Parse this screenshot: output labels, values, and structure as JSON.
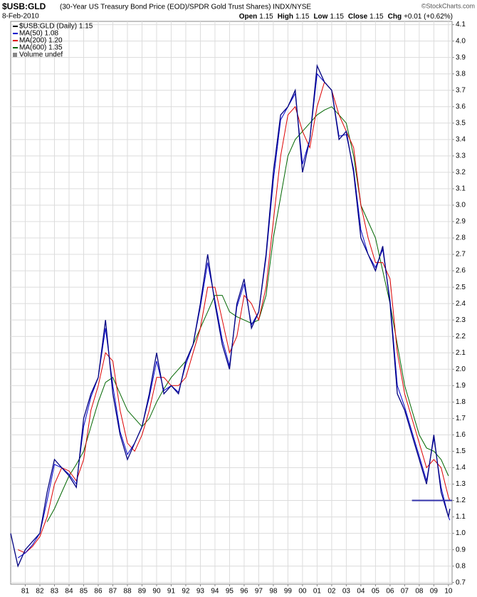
{
  "chart_data": {
    "type": "line",
    "title": "$USB:GLD",
    "subtitle": "(30-Year US Treasury Bond Price (EOD)/SPDR Gold Trust Shares) INDX/NYSE",
    "date": "8-Feb-2010",
    "copyright": "©StockCharts.com",
    "quote": [
      {
        "label": "Open",
        "value": 1.15
      },
      {
        "label": "High",
        "value": 1.15
      },
      {
        "label": "Low",
        "value": 1.15
      },
      {
        "label": "Close",
        "value": 1.15
      },
      {
        "label": "Chg",
        "value": "+0.01 (+0.62%)"
      }
    ],
    "x": [
      1980,
      1980.5,
      1981,
      1981.5,
      1982,
      1982.5,
      1983,
      1983.5,
      1984,
      1984.5,
      1985,
      1985.5,
      1986,
      1986.5,
      1987,
      1987.5,
      1988,
      1988.5,
      1989,
      1989.5,
      1990,
      1990.5,
      1991,
      1991.5,
      1992,
      1992.5,
      1993,
      1993.5,
      1994,
      1994.5,
      1995,
      1995.5,
      1996,
      1996.5,
      1997,
      1997.5,
      1998,
      1998.5,
      1999,
      1999.5,
      2000,
      2000.5,
      2001,
      2001.5,
      2002,
      2002.5,
      2003,
      2003.5,
      2004,
      2004.5,
      2005,
      2005.5,
      2006,
      2006.5,
      2007,
      2007.5,
      2008,
      2008.5,
      2009,
      2009.5,
      2010,
      2010.1
    ],
    "series": [
      {
        "name": "$USB:GLD (Daily) 1.15",
        "color": "#000080",
        "values": [
          1.0,
          0.8,
          0.9,
          0.95,
          1.0,
          1.25,
          1.45,
          1.4,
          1.35,
          1.28,
          1.7,
          1.85,
          1.95,
          2.3,
          1.85,
          1.6,
          1.45,
          1.55,
          1.65,
          1.85,
          2.1,
          1.85,
          1.9,
          1.85,
          2.05,
          2.15,
          2.4,
          2.7,
          2.4,
          2.15,
          2.0,
          2.4,
          2.55,
          2.25,
          2.35,
          2.7,
          3.2,
          3.55,
          3.6,
          3.7,
          3.2,
          3.4,
          3.85,
          3.75,
          3.7,
          3.4,
          3.45,
          3.2,
          2.8,
          2.7,
          2.6,
          2.75,
          2.4,
          1.85,
          1.75,
          1.6,
          1.45,
          1.3,
          1.6,
          1.25,
          1.1,
          1.15
        ]
      },
      {
        "name": "MA(50) 1.08",
        "color": "#0000cc",
        "values": [
          null,
          0.85,
          0.88,
          0.93,
          1.0,
          1.2,
          1.42,
          1.4,
          1.36,
          1.3,
          1.65,
          1.83,
          1.95,
          2.25,
          1.9,
          1.62,
          1.48,
          1.55,
          1.65,
          1.83,
          2.05,
          1.87,
          1.9,
          1.86,
          2.03,
          2.15,
          2.38,
          2.65,
          2.42,
          2.18,
          2.02,
          2.38,
          2.52,
          2.27,
          2.35,
          2.68,
          3.15,
          3.52,
          3.6,
          3.68,
          3.25,
          3.4,
          3.8,
          3.75,
          3.7,
          3.42,
          3.43,
          3.22,
          2.85,
          2.7,
          2.62,
          2.73,
          2.42,
          1.9,
          1.77,
          1.62,
          1.47,
          1.32,
          1.58,
          1.28,
          1.1,
          1.08
        ]
      },
      {
        "name": "MA(200) 1.20",
        "color": "#dd0000",
        "values": [
          null,
          0.9,
          0.88,
          0.92,
          0.98,
          1.1,
          1.3,
          1.4,
          1.38,
          1.32,
          1.45,
          1.75,
          1.9,
          2.1,
          2.05,
          1.75,
          1.55,
          1.5,
          1.6,
          1.75,
          1.95,
          1.95,
          1.9,
          1.9,
          1.95,
          2.1,
          2.25,
          2.5,
          2.5,
          2.3,
          2.1,
          2.2,
          2.45,
          2.4,
          2.3,
          2.5,
          2.9,
          3.3,
          3.55,
          3.6,
          3.45,
          3.35,
          3.6,
          3.75,
          3.7,
          3.55,
          3.45,
          3.35,
          3.0,
          2.8,
          2.65,
          2.65,
          2.55,
          2.1,
          1.85,
          1.7,
          1.55,
          1.4,
          1.45,
          1.4,
          1.22,
          1.2
        ]
      },
      {
        "name": "MA(600) 1.35",
        "color": "#006600",
        "values": [
          null,
          null,
          null,
          null,
          null,
          1.07,
          1.15,
          1.25,
          1.35,
          1.42,
          1.5,
          1.65,
          1.8,
          1.92,
          1.95,
          1.85,
          1.75,
          1.7,
          1.65,
          1.7,
          1.8,
          1.88,
          1.95,
          2.0,
          2.05,
          2.15,
          2.25,
          2.35,
          2.45,
          2.45,
          2.35,
          2.32,
          2.3,
          2.28,
          2.3,
          2.45,
          2.8,
          3.05,
          3.3,
          3.4,
          3.45,
          3.5,
          3.55,
          3.58,
          3.6,
          3.55,
          3.5,
          3.3,
          3.0,
          2.9,
          2.8,
          2.6,
          2.4,
          2.15,
          1.9,
          1.75,
          1.6,
          1.52,
          1.5,
          1.45,
          1.35,
          null
        ]
      }
    ],
    "legend_extra": "Volume undef",
    "hline": {
      "value": 1.2,
      "x": [
        2007.5,
        2010.25
      ],
      "color": "#3333aa"
    },
    "xlim": [
      1980,
      2010.25
    ],
    "xticks": [
      {
        "value": 1981,
        "label": "81"
      },
      {
        "value": 1982,
        "label": "82"
      },
      {
        "value": 1983,
        "label": "83"
      },
      {
        "value": 1984,
        "label": "84"
      },
      {
        "value": 1985,
        "label": "85"
      },
      {
        "value": 1986,
        "label": "86"
      },
      {
        "value": 1987,
        "label": "87"
      },
      {
        "value": 1988,
        "label": "88"
      },
      {
        "value": 1989,
        "label": "89"
      },
      {
        "value": 1990,
        "label": "90"
      },
      {
        "value": 1991,
        "label": "91"
      },
      {
        "value": 1992,
        "label": "92"
      },
      {
        "value": 1993,
        "label": "93"
      },
      {
        "value": 1994,
        "label": "94"
      },
      {
        "value": 1995,
        "label": "95"
      },
      {
        "value": 1996,
        "label": "96"
      },
      {
        "value": 1997,
        "label": "97"
      },
      {
        "value": 1998,
        "label": "98"
      },
      {
        "value": 1999,
        "label": "99"
      },
      {
        "value": 2000,
        "label": "00"
      },
      {
        "value": 2001,
        "label": "01"
      },
      {
        "value": 2002,
        "label": "02"
      },
      {
        "value": 2003,
        "label": "03"
      },
      {
        "value": 2004,
        "label": "04"
      },
      {
        "value": 2005,
        "label": "05"
      },
      {
        "value": 2006,
        "label": "06"
      },
      {
        "value": 2007,
        "label": "07"
      },
      {
        "value": 2008,
        "label": "08"
      },
      {
        "value": 2009,
        "label": "09"
      },
      {
        "value": 2010,
        "label": "10"
      }
    ],
    "ylim": [
      0.69,
      4.12
    ],
    "yticks": [
      0.7,
      0.8,
      0.9,
      {
        "value": 1.0,
        "label": "1.0"
      },
      1.1,
      1.2,
      1.3,
      1.4,
      1.5,
      1.6,
      1.7,
      1.8,
      1.9,
      {
        "value": 2.0,
        "label": "2.0"
      },
      2.1,
      2.2,
      2.3,
      2.4,
      2.5,
      2.6,
      2.7,
      2.8,
      2.9,
      {
        "value": 3.0,
        "label": "3.0"
      },
      3.1,
      3.2,
      3.3,
      3.4,
      3.5,
      3.6,
      3.7,
      3.8,
      3.9,
      {
        "value": 4.0,
        "label": "4.0"
      },
      4.1
    ],
    "grid": true
  }
}
